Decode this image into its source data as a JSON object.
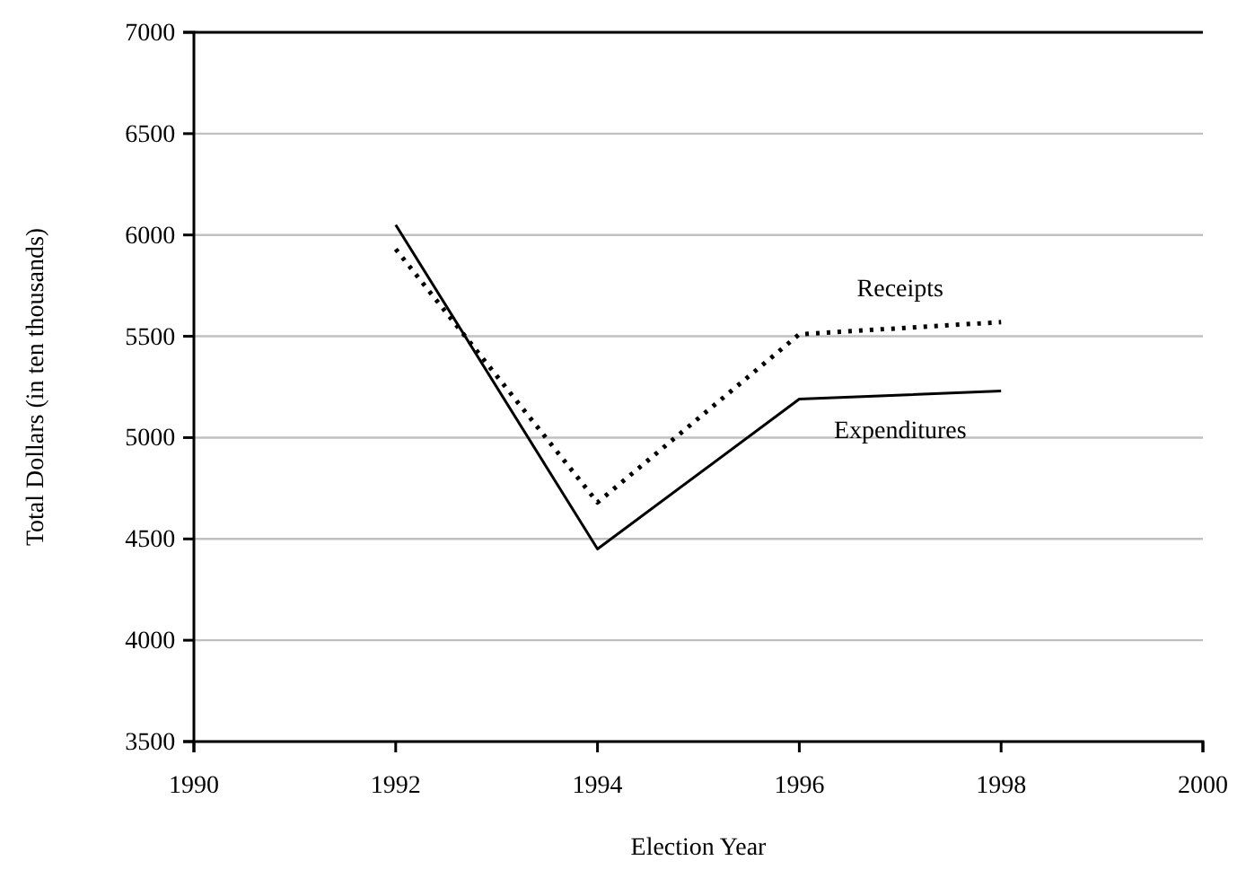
{
  "chart_data": {
    "type": "line",
    "xlabel": "Election Year",
    "ylabel": "Total Dollars (in ten thousands)",
    "x": [
      1992,
      1994,
      1996,
      1998
    ],
    "series": [
      {
        "name": "Receipts",
        "color": "#000000",
        "line_style": "dotted",
        "values": [
          5930,
          4680,
          5510,
          5570
        ]
      },
      {
        "name": "Expenditures",
        "color": "#000000",
        "line_style": "solid",
        "values": [
          6050,
          4450,
          5190,
          5230
        ]
      }
    ],
    "xlim": [
      1990,
      2000
    ],
    "xticks": [
      1990,
      1992,
      1994,
      1996,
      1998,
      2000
    ],
    "ylim": [
      3500,
      7000
    ],
    "yticks": [
      3500,
      4000,
      4500,
      5000,
      5500,
      6000,
      6500,
      7000
    ],
    "grid": "y"
  }
}
